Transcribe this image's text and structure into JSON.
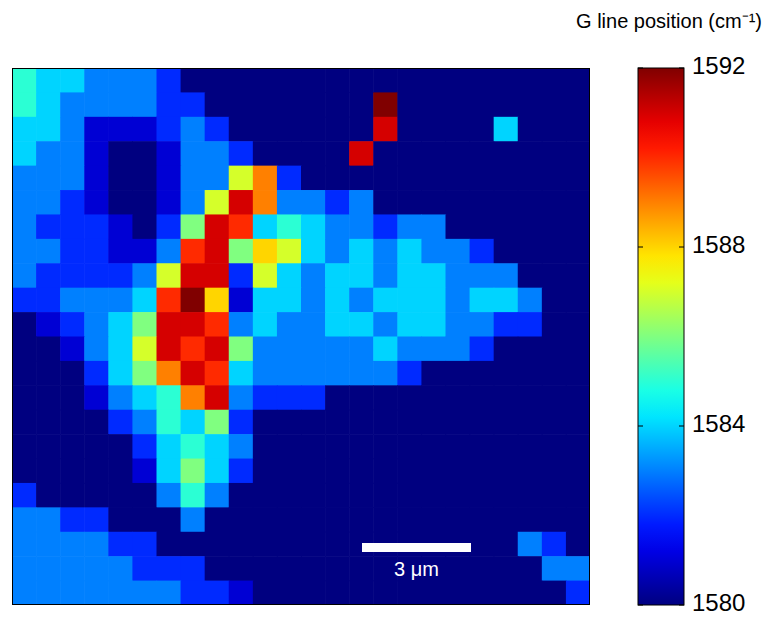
{
  "chart_data": {
    "type": "heatmap",
    "colorbar_label": "G line position (cm⁻¹)",
    "colorbar_lim": [
      1580,
      1592
    ],
    "colorbar_ticks": [
      1580,
      1584,
      1588,
      1592
    ],
    "xlim": [
      0,
      15.8
    ],
    "ylim": [
      0,
      14.6
    ],
    "tick_labels": false,
    "scale_bar": {
      "label": "3 μm",
      "length": 3
    },
    "cells": [
      [
        1585,
        1584,
        1584,
        1583,
        1583,
        1583,
        1582,
        1580,
        1580,
        1580,
        1580,
        1580,
        1580,
        1580,
        1580,
        1580,
        1580,
        1580,
        1580,
        1580,
        1580,
        1580,
        1580,
        1580
      ],
      [
        1585,
        1584,
        1583,
        1583,
        1583,
        1583,
        1582,
        1582,
        1580,
        1580,
        1580,
        1580,
        1580,
        1580,
        1580,
        1592,
        1580,
        1580,
        1580,
        1580,
        1580,
        1580,
        1580,
        1580
      ],
      [
        1584,
        1584,
        1583,
        1581,
        1581,
        1581,
        1582,
        1583,
        1582,
        1580,
        1580,
        1580,
        1580,
        1580,
        1580,
        1591,
        1580,
        1580,
        1580,
        1580,
        1584,
        1580,
        1580,
        1580
      ],
      [
        1584,
        1583,
        1583,
        1581,
        1580,
        1580,
        1581,
        1583,
        1583,
        1582,
        1580,
        1580,
        1580,
        1580,
        1591,
        1580,
        1580,
        1580,
        1580,
        1580,
        1580,
        1580,
        1580,
        1580
      ],
      [
        1583,
        1583,
        1583,
        1581,
        1580,
        1580,
        1581,
        1583,
        1583,
        1587,
        1589,
        1582,
        1580,
        1580,
        1580,
        1580,
        1580,
        1580,
        1580,
        1580,
        1580,
        1580,
        1580,
        1580
      ],
      [
        1583,
        1583,
        1582,
        1581,
        1580,
        1580,
        1581,
        1583,
        1587,
        1591,
        1589,
        1583,
        1583,
        1582,
        1583,
        1580,
        1580,
        1580,
        1580,
        1580,
        1580,
        1580,
        1580,
        1580
      ],
      [
        1583,
        1582,
        1582,
        1582,
        1581,
        1580,
        1582,
        1586,
        1591,
        1590,
        1584,
        1585,
        1584,
        1583,
        1583,
        1582,
        1583,
        1583,
        1580,
        1580,
        1580,
        1580,
        1580,
        1580
      ],
      [
        1583,
        1583,
        1582,
        1582,
        1581,
        1581,
        1583,
        1590,
        1591,
        1586,
        1588,
        1587,
        1584,
        1583,
        1584,
        1583,
        1584,
        1583,
        1583,
        1582,
        1580,
        1580,
        1580,
        1580
      ],
      [
        1583,
        1582,
        1582,
        1582,
        1582,
        1583,
        1587,
        1591,
        1591,
        1582,
        1587,
        1584,
        1583,
        1584,
        1584,
        1583,
        1584,
        1584,
        1583,
        1583,
        1583,
        1580,
        1580,
        1580
      ],
      [
        1582,
        1582,
        1583,
        1583,
        1583,
        1584,
        1590,
        1592,
        1588,
        1581,
        1584,
        1584,
        1583,
        1584,
        1583,
        1584,
        1584,
        1584,
        1583,
        1584,
        1584,
        1583,
        1580,
        1580
      ],
      [
        1580,
        1581,
        1582,
        1583,
        1584,
        1586,
        1591,
        1591,
        1590,
        1583,
        1584,
        1583,
        1583,
        1584,
        1584,
        1583,
        1584,
        1584,
        1583,
        1583,
        1582,
        1582,
        1580,
        1580
      ],
      [
        1580,
        1580,
        1581,
        1583,
        1584,
        1587,
        1591,
        1590,
        1591,
        1586,
        1583,
        1583,
        1583,
        1583,
        1583,
        1584,
        1583,
        1583,
        1583,
        1582,
        1580,
        1580,
        1580,
        1580
      ],
      [
        1580,
        1580,
        1580,
        1582,
        1584,
        1586,
        1589,
        1591,
        1590,
        1584,
        1583,
        1583,
        1583,
        1583,
        1583,
        1583,
        1582,
        1580,
        1580,
        1580,
        1580,
        1580,
        1580,
        1580
      ],
      [
        1580,
        1580,
        1580,
        1581,
        1583,
        1584,
        1585,
        1589,
        1591,
        1583,
        1582,
        1582,
        1582,
        1580,
        1580,
        1580,
        1580,
        1580,
        1580,
        1580,
        1580,
        1580,
        1580,
        1580
      ],
      [
        1580,
        1580,
        1580,
        1580,
        1582,
        1583,
        1585,
        1584,
        1586,
        1582,
        1580,
        1580,
        1580,
        1580,
        1580,
        1580,
        1580,
        1580,
        1580,
        1580,
        1580,
        1580,
        1580,
        1580
      ],
      [
        1580,
        1580,
        1580,
        1580,
        1580,
        1582,
        1584,
        1585,
        1584,
        1583,
        1580,
        1580,
        1580,
        1580,
        1580,
        1580,
        1580,
        1580,
        1580,
        1580,
        1580,
        1580,
        1580,
        1580
      ],
      [
        1580,
        1580,
        1580,
        1580,
        1580,
        1581,
        1584,
        1586,
        1584,
        1582,
        1580,
        1580,
        1580,
        1580,
        1580,
        1580,
        1580,
        1580,
        1580,
        1580,
        1580,
        1580,
        1580,
        1580
      ],
      [
        1582,
        1580,
        1580,
        1580,
        1580,
        1580,
        1583,
        1585,
        1583,
        1580,
        1580,
        1580,
        1580,
        1580,
        1580,
        1580,
        1580,
        1580,
        1580,
        1580,
        1580,
        1580,
        1580,
        1580
      ],
      [
        1583,
        1583,
        1582,
        1582,
        1580,
        1580,
        1580,
        1583,
        1580,
        1580,
        1580,
        1580,
        1580,
        1580,
        1580,
        1580,
        1580,
        1580,
        1580,
        1580,
        1580,
        1580,
        1580,
        1580
      ],
      [
        1583,
        1583,
        1583,
        1583,
        1582,
        1582,
        1580,
        1580,
        1580,
        1580,
        1580,
        1580,
        1580,
        1580,
        1580,
        1580,
        1580,
        1580,
        1580,
        1580,
        1580,
        1583,
        1582,
        1580
      ],
      [
        1583,
        1583,
        1583,
        1583,
        1583,
        1582,
        1582,
        1582,
        1580,
        1580,
        1580,
        1580,
        1580,
        1580,
        1580,
        1580,
        1580,
        1580,
        1580,
        1580,
        1580,
        1580,
        1583,
        1583
      ],
      [
        1583,
        1583,
        1583,
        1583,
        1583,
        1583,
        1583,
        1582,
        1582,
        1581,
        1580,
        1580,
        1580,
        1580,
        1580,
        1580,
        1580,
        1580,
        1580,
        1580,
        1580,
        1580,
        1580,
        1582
      ]
    ]
  }
}
